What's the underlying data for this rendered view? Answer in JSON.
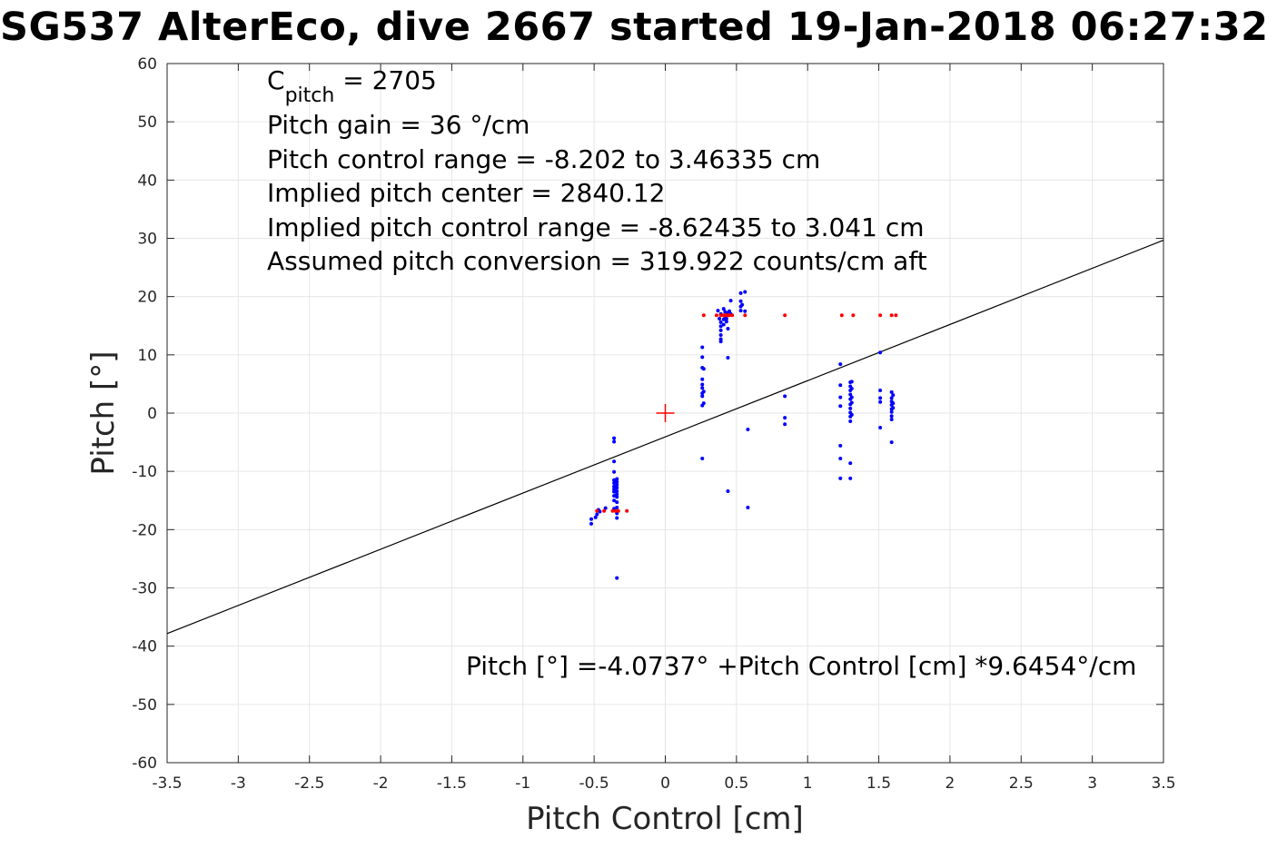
{
  "chart_data": {
    "type": "scatter",
    "title": "SG537 AlterEco, dive 2667 started 19-Jan-2018 06:27:32",
    "xlabel": "Pitch Control [cm]",
    "ylabel": "Pitch [°]",
    "xlim": [
      -3.5,
      3.5
    ],
    "ylim": [
      -60,
      60
    ],
    "x_ticks": [
      -3.5,
      -3,
      -2.5,
      -2,
      -1.5,
      -1,
      -0.5,
      0,
      0.5,
      1,
      1.5,
      2,
      2.5,
      3,
      3.5
    ],
    "x_tick_labels": [
      "-3.5",
      "-3",
      "-2.5",
      "-2",
      "-1.5",
      "-1",
      "-0.5",
      "0",
      "0.5",
      "1",
      "1.5",
      "2",
      "2.5",
      "3",
      "3.5"
    ],
    "y_ticks": [
      60,
      50,
      40,
      30,
      20,
      10,
      0,
      -10,
      -20,
      -30,
      -40,
      -50,
      -60
    ],
    "y_tick_labels": [
      "60",
      "50",
      "40",
      "30",
      "20",
      "10",
      "0",
      "-10",
      "-20",
      "-30",
      "-40",
      "-50",
      "-60"
    ],
    "grid": true,
    "fit_line": {
      "intercept": -4.0737,
      "slope": 9.6454,
      "color": "#000000",
      "label": "Pitch [°] =-4.0737° +Pitch Control [cm] *9.6454°/cm"
    },
    "center_marker": {
      "x": 0,
      "y": 0,
      "color": "#ff0000",
      "symbol": "+"
    },
    "annotations": {
      "c_pitch_prefix": "C",
      "c_pitch_sub": "pitch",
      "c_pitch_suffix": " = 2705",
      "lines": [
        "Pitch gain = 36 °/cm",
        "Pitch control range = -8.202 to 3.46335 cm",
        "Implied pitch center = 2840.12",
        "Implied pitch control range = -8.62435 to 3.041 cm",
        "Assumed pitch conversion = 319.922 counts/cm aft"
      ]
    },
    "series": [
      {
        "color": "#0000ff",
        "marker": "dot",
        "points": [
          [
            -0.52,
            -18.2
          ],
          [
            -0.52,
            -19.0
          ],
          [
            -0.49,
            -17.9
          ],
          [
            -0.48,
            -17.4
          ],
          [
            -0.47,
            -16.6
          ],
          [
            -0.46,
            -16.9
          ],
          [
            -0.42,
            -16.3
          ],
          [
            -0.36,
            -4.3
          ],
          [
            -0.36,
            -4.9
          ],
          [
            -0.36,
            -8.3
          ],
          [
            -0.36,
            -10.1
          ],
          [
            -0.36,
            -11.5
          ],
          [
            -0.36,
            -12.0
          ],
          [
            -0.36,
            -12.6
          ],
          [
            -0.36,
            -13.1
          ],
          [
            -0.36,
            -13.5
          ],
          [
            -0.36,
            -14.2
          ],
          [
            -0.36,
            -15.0
          ],
          [
            -0.36,
            -16.4
          ],
          [
            -0.34,
            -11.3
          ],
          [
            -0.34,
            -11.8
          ],
          [
            -0.34,
            -12.3
          ],
          [
            -0.34,
            -12.8
          ],
          [
            -0.34,
            -13.4
          ],
          [
            -0.34,
            -13.9
          ],
          [
            -0.34,
            -14.4
          ],
          [
            -0.34,
            -15.3
          ],
          [
            -0.34,
            -16.2
          ],
          [
            -0.34,
            -17.2
          ],
          [
            -0.34,
            -18.0
          ],
          [
            -0.34,
            -28.3
          ],
          [
            0.26,
            11.3
          ],
          [
            0.26,
            9.6
          ],
          [
            0.26,
            7.8
          ],
          [
            0.26,
            5.8
          ],
          [
            0.26,
            4.9
          ],
          [
            0.26,
            4.3
          ],
          [
            0.26,
            3.4
          ],
          [
            0.26,
            2.9
          ],
          [
            0.26,
            1.3
          ],
          [
            0.26,
            -7.8
          ],
          [
            0.27,
            7.6
          ],
          [
            0.27,
            3.7
          ],
          [
            0.27,
            1.7
          ],
          [
            0.37,
            17.6
          ],
          [
            0.38,
            16.2
          ],
          [
            0.39,
            17.0
          ],
          [
            0.39,
            15.6
          ],
          [
            0.39,
            14.9
          ],
          [
            0.39,
            14.2
          ],
          [
            0.39,
            13.4
          ],
          [
            0.39,
            12.7
          ],
          [
            0.39,
            12.3
          ],
          [
            0.41,
            17.9
          ],
          [
            0.41,
            16.1
          ],
          [
            0.41,
            15.2
          ],
          [
            0.42,
            17.4
          ],
          [
            0.42,
            16.6
          ],
          [
            0.43,
            16.2
          ],
          [
            0.43,
            15.7
          ],
          [
            0.44,
            17.2
          ],
          [
            0.44,
            14.5
          ],
          [
            0.44,
            9.5
          ],
          [
            0.44,
            -13.4
          ],
          [
            0.45,
            17.5
          ],
          [
            0.46,
            17.0
          ],
          [
            0.46,
            19.3
          ],
          [
            0.53,
            20.6
          ],
          [
            0.53,
            19.2
          ],
          [
            0.53,
            18.3
          ],
          [
            0.53,
            17.6
          ],
          [
            0.54,
            18.6
          ],
          [
            0.56,
            20.8
          ],
          [
            0.56,
            17.5
          ],
          [
            0.58,
            -2.8
          ],
          [
            0.58,
            -16.2
          ],
          [
            0.84,
            2.9
          ],
          [
            0.84,
            -0.8
          ],
          [
            0.84,
            -1.9
          ],
          [
            1.23,
            8.4
          ],
          [
            1.23,
            4.8
          ],
          [
            1.23,
            2.7
          ],
          [
            1.23,
            1.2
          ],
          [
            1.23,
            -5.6
          ],
          [
            1.23,
            -7.8
          ],
          [
            1.23,
            -11.2
          ],
          [
            1.3,
            5.3
          ],
          [
            1.3,
            4.6
          ],
          [
            1.3,
            3.9
          ],
          [
            1.3,
            3.2
          ],
          [
            1.3,
            2.4
          ],
          [
            1.3,
            1.5
          ],
          [
            1.3,
            0.8
          ],
          [
            1.3,
            0.1
          ],
          [
            1.3,
            -0.6
          ],
          [
            1.3,
            -1.4
          ],
          [
            1.3,
            -8.6
          ],
          [
            1.3,
            -11.2
          ],
          [
            1.31,
            5.4
          ],
          [
            1.31,
            4.2
          ],
          [
            1.31,
            2.7
          ],
          [
            1.31,
            1.8
          ],
          [
            1.31,
            -0.3
          ],
          [
            1.51,
            10.4
          ],
          [
            1.51,
            3.9
          ],
          [
            1.51,
            2.6
          ],
          [
            1.51,
            1.9
          ],
          [
            1.51,
            -2.5
          ],
          [
            1.59,
            3.6
          ],
          [
            1.59,
            2.6
          ],
          [
            1.59,
            2.0
          ],
          [
            1.59,
            1.4
          ],
          [
            1.59,
            0.7
          ],
          [
            1.59,
            0.2
          ],
          [
            1.59,
            -0.5
          ],
          [
            1.59,
            -1.1
          ],
          [
            1.59,
            -5.0
          ],
          [
            1.6,
            3.1
          ],
          [
            1.6,
            1.7
          ],
          [
            1.6,
            0.9
          ]
        ]
      },
      {
        "color": "#ff0000",
        "marker": "dot",
        "points": [
          [
            -0.48,
            -16.8
          ],
          [
            -0.43,
            -16.8
          ],
          [
            -0.37,
            -16.8
          ],
          [
            -0.35,
            -16.8
          ],
          [
            -0.33,
            -16.8
          ],
          [
            -0.27,
            -16.8
          ],
          [
            0.27,
            16.8
          ],
          [
            0.36,
            16.8
          ],
          [
            0.39,
            16.8
          ],
          [
            0.41,
            16.8
          ],
          [
            0.42,
            16.8
          ],
          [
            0.43,
            16.8
          ],
          [
            0.44,
            16.8
          ],
          [
            0.45,
            16.8
          ],
          [
            0.47,
            16.8
          ],
          [
            0.56,
            16.8
          ],
          [
            0.84,
            16.8
          ],
          [
            1.24,
            16.8
          ],
          [
            1.32,
            16.8
          ],
          [
            1.51,
            16.8
          ],
          [
            1.59,
            16.8
          ],
          [
            1.62,
            16.8
          ]
        ]
      }
    ]
  }
}
